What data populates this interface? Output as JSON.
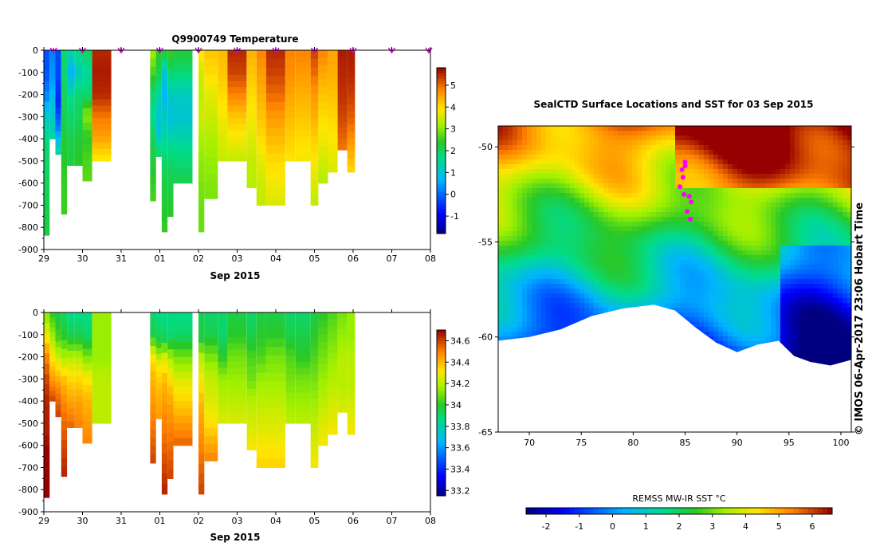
{
  "chart_data": [
    {
      "type": "heatmap",
      "title": "Q9900749  Temperature",
      "xlabel": "Sep 2015",
      "x_ticks": [
        "29",
        "30",
        "31",
        "01",
        "02",
        "03",
        "04",
        "05",
        "06",
        "07",
        "08"
      ],
      "y_ticks": [
        "0",
        "-100",
        "-200",
        "-300",
        "-400",
        "-500",
        "-600",
        "-700",
        "-800",
        "-900"
      ],
      "ylim": [
        -900,
        0
      ],
      "colorbar": {
        "ticks": [
          "-1",
          "0",
          "1",
          "2",
          "3",
          "4",
          "5"
        ],
        "range": [
          -1.8,
          5.8
        ]
      },
      "profiles": [
        {
          "t": 0.0,
          "bottom": -835,
          "values": [
            -0.2,
            -0.2,
            0.3,
            1.2,
            1.8,
            1.9,
            2.0,
            2.1,
            2.2
          ]
        },
        {
          "t": 0.15,
          "bottom": -400,
          "values": [
            0.2,
            0.4,
            1.0,
            1.4
          ]
        },
        {
          "t": 0.3,
          "bottom": -470,
          "values": [
            -0.3,
            -0.3,
            -0.6,
            0.2,
            1.6
          ]
        },
        {
          "t": 0.45,
          "bottom": -740,
          "values": [
            1.8,
            1.9,
            2.0,
            2.1,
            2.3,
            2.4,
            2.5,
            2.5
          ]
        },
        {
          "t": 0.6,
          "bottom": -520,
          "values": [
            1.5,
            0.6,
            1.6,
            1.9,
            2.1,
            2.2
          ]
        },
        {
          "t": 0.8,
          "bottom": -520,
          "values": [
            1.7,
            1.2,
            1.9,
            2.0,
            2.3,
            2.4
          ]
        },
        {
          "t": 1.0,
          "bottom": -590,
          "values": [
            2.0,
            1.5,
            1.8,
            3.0,
            2.4,
            2.6,
            2.7
          ]
        },
        {
          "t": 1.25,
          "bottom": -500,
          "values": [
            5.5,
            5.6,
            5.5,
            4.9,
            4.5,
            3.8
          ]
        },
        {
          "t": 2.75,
          "bottom": -680,
          "values": [
            3.2,
            2.6,
            1.9,
            1.6,
            2.0,
            2.2,
            2.4,
            2.6
          ]
        },
        {
          "t": 2.9,
          "bottom": -480,
          "values": [
            2.5,
            2.0,
            1.2,
            0.9,
            2.0
          ]
        },
        {
          "t": 3.05,
          "bottom": -820,
          "values": [
            2.4,
            1.0,
            0.7,
            1.2,
            1.5,
            1.9,
            2.2,
            2.3,
            2.5
          ]
        },
        {
          "t": 3.2,
          "bottom": -750,
          "values": [
            2.6,
            1.8,
            1.1,
            0.9,
            1.6,
            2.0,
            2.2,
            2.4
          ]
        },
        {
          "t": 3.35,
          "bottom": -600,
          "values": [
            2.3,
            1.8,
            1.2,
            1.0,
            1.4,
            1.8,
            2.1
          ]
        },
        {
          "t": 4.0,
          "bottom": -820,
          "values": [
            4.0,
            3.5,
            3.4,
            3.5,
            3.2,
            3.0,
            2.9,
            2.8,
            2.8
          ]
        },
        {
          "t": 4.15,
          "bottom": -670,
          "values": [
            4.2,
            4.0,
            3.7,
            3.5,
            3.3,
            3.1,
            3.0,
            2.9
          ]
        },
        {
          "t": 4.5,
          "bottom": -500,
          "values": [
            4.3,
            4.2,
            4.0,
            3.8,
            3.6,
            3.4
          ]
        },
        {
          "t": 4.75,
          "bottom": -500,
          "values": [
            5.5,
            5.3,
            4.8,
            4.2,
            3.8,
            3.4
          ]
        },
        {
          "t": 5.25,
          "bottom": -620,
          "values": [
            4.4,
            4.2,
            4.0,
            3.8,
            3.6,
            3.4,
            3.3
          ]
        },
        {
          "t": 5.5,
          "bottom": -700,
          "values": [
            4.8,
            4.6,
            4.4,
            4.2,
            4.0,
            3.7,
            3.5,
            3.4
          ]
        },
        {
          "t": 5.75,
          "bottom": -700,
          "values": [
            5.5,
            5.3,
            5.0,
            4.6,
            4.3,
            4.0,
            3.8,
            3.6
          ]
        },
        {
          "t": 6.25,
          "bottom": -500,
          "values": [
            4.8,
            4.7,
            4.5,
            4.3,
            4.1,
            3.9
          ]
        },
        {
          "t": 6.5,
          "bottom": -500,
          "values": [
            4.8,
            4.6,
            4.4,
            4.2,
            4.0,
            3.8
          ]
        },
        {
          "t": 6.9,
          "bottom": -700,
          "values": [
            5.3,
            5.0,
            4.6,
            4.4,
            4.1,
            3.9,
            3.6,
            3.4
          ]
        },
        {
          "t": 7.1,
          "bottom": -600,
          "values": [
            4.8,
            4.5,
            4.2,
            4.0,
            3.8,
            3.5,
            3.3
          ]
        },
        {
          "t": 7.35,
          "bottom": -550,
          "values": [
            4.5,
            4.4,
            4.2,
            4.0,
            3.8,
            3.6
          ]
        },
        {
          "t": 7.6,
          "bottom": -450,
          "values": [
            5.6,
            5.5,
            5.4,
            5.2,
            4.9
          ]
        },
        {
          "t": 7.85,
          "bottom": -550,
          "values": [
            5.6,
            5.5,
            5.3,
            5.0,
            4.5,
            4.0
          ]
        }
      ],
      "surface_markers": [
        0.25,
        1.0,
        2.0,
        3.0,
        4.0,
        5.0,
        6.0,
        7.0,
        8.0,
        9.0,
        10.0
      ]
    },
    {
      "type": "heatmap",
      "xlabel": "Sep 2015",
      "x_ticks": [
        "29",
        "30",
        "31",
        "01",
        "02",
        "03",
        "04",
        "05",
        "06",
        "07",
        "08"
      ],
      "y_ticks": [
        "0",
        "-100",
        "-200",
        "-300",
        "-400",
        "-500",
        "-600",
        "-700",
        "-800",
        "-900"
      ],
      "ylim": [
        -900,
        0
      ],
      "colorbar": {
        "ticks": [
          "33.2",
          "33.4",
          "33.6",
          "33.8",
          "34",
          "34.2",
          "34.4",
          "34.6"
        ],
        "range": [
          33.15,
          34.7
        ]
      },
      "profiles": [
        {
          "t": 0.0,
          "bottom": -835,
          "values": [
            34.1,
            34.3,
            34.5,
            34.6,
            34.65,
            34.65,
            34.7,
            34.7,
            34.7
          ]
        },
        {
          "t": 0.15,
          "bottom": -400,
          "values": [
            34.0,
            34.2,
            34.4,
            34.6
          ]
        },
        {
          "t": 0.3,
          "bottom": -470,
          "values": [
            33.95,
            34.05,
            34.3,
            34.5,
            34.6
          ]
        },
        {
          "t": 0.45,
          "bottom": -740,
          "values": [
            33.9,
            34.0,
            34.2,
            34.4,
            34.5,
            34.55,
            34.6,
            34.65
          ]
        },
        {
          "t": 0.6,
          "bottom": -520,
          "values": [
            33.85,
            33.95,
            34.2,
            34.35,
            34.45,
            34.55
          ]
        },
        {
          "t": 0.8,
          "bottom": -520,
          "values": [
            33.85,
            33.95,
            34.2,
            34.35,
            34.45,
            34.5
          ]
        },
        {
          "t": 1.0,
          "bottom": -590,
          "values": [
            33.85,
            33.9,
            34.1,
            34.3,
            34.4,
            34.45,
            34.5
          ]
        },
        {
          "t": 1.25,
          "bottom": -500,
          "values": [
            34.15,
            34.15,
            34.15,
            34.2,
            34.2,
            34.2
          ]
        },
        {
          "t": 2.75,
          "bottom": -680,
          "values": [
            33.9,
            33.95,
            34.3,
            34.4,
            34.45,
            34.5,
            34.55,
            34.6
          ]
        },
        {
          "t": 2.9,
          "bottom": -480,
          "values": [
            33.85,
            33.95,
            34.3,
            34.4,
            34.45
          ]
        },
        {
          "t": 3.05,
          "bottom": -820,
          "values": [
            33.85,
            33.9,
            34.25,
            34.4,
            34.45,
            34.5,
            34.55,
            34.6,
            34.65
          ]
        },
        {
          "t": 3.2,
          "bottom": -750,
          "values": [
            33.85,
            33.9,
            34.2,
            34.35,
            34.45,
            34.5,
            34.55,
            34.6
          ]
        },
        {
          "t": 3.35,
          "bottom": -600,
          "values": [
            33.85,
            33.9,
            34.1,
            34.25,
            34.35,
            34.45,
            34.55
          ]
        },
        {
          "t": 4.0,
          "bottom": -820,
          "values": [
            33.95,
            33.95,
            34.2,
            34.3,
            34.4,
            34.45,
            34.5,
            34.55,
            34.6
          ]
        },
        {
          "t": 4.15,
          "bottom": -670,
          "values": [
            33.9,
            33.95,
            34.1,
            34.2,
            34.25,
            34.3,
            34.4,
            34.5
          ]
        },
        {
          "t": 4.5,
          "bottom": -500,
          "values": [
            33.9,
            33.9,
            34.0,
            34.15,
            34.2,
            34.25
          ]
        },
        {
          "t": 4.75,
          "bottom": -500,
          "values": [
            33.95,
            34.0,
            34.1,
            34.15,
            34.2,
            34.25
          ]
        },
        {
          "t": 5.25,
          "bottom": -620,
          "values": [
            33.9,
            33.95,
            34.05,
            34.1,
            34.2,
            34.25,
            34.3
          ]
        },
        {
          "t": 5.5,
          "bottom": -700,
          "values": [
            33.95,
            34.0,
            34.05,
            34.15,
            34.2,
            34.25,
            34.3,
            34.35
          ]
        },
        {
          "t": 5.75,
          "bottom": -700,
          "values": [
            33.95,
            34.0,
            34.1,
            34.15,
            34.2,
            34.25,
            34.3,
            34.35
          ]
        },
        {
          "t": 6.25,
          "bottom": -500,
          "values": [
            33.9,
            33.95,
            34.05,
            34.1,
            34.15,
            34.2
          ]
        },
        {
          "t": 6.5,
          "bottom": -500,
          "values": [
            33.9,
            33.95,
            34.0,
            34.1,
            34.15,
            34.2
          ]
        },
        {
          "t": 6.9,
          "bottom": -700,
          "values": [
            33.95,
            34.0,
            34.05,
            34.1,
            34.15,
            34.2,
            34.25,
            34.3
          ]
        },
        {
          "t": 7.1,
          "bottom": -600,
          "values": [
            34.0,
            34.05,
            34.1,
            34.15,
            34.2,
            34.25,
            34.3
          ]
        },
        {
          "t": 7.35,
          "bottom": -550,
          "values": [
            34.05,
            34.1,
            34.15,
            34.2,
            34.25,
            34.3
          ]
        },
        {
          "t": 7.6,
          "bottom": -450,
          "values": [
            34.1,
            34.15,
            34.2,
            34.2,
            34.25
          ]
        },
        {
          "t": 7.85,
          "bottom": -550,
          "values": [
            34.15,
            34.15,
            34.2,
            34.2,
            34.25,
            34.3
          ]
        }
      ]
    },
    {
      "type": "heatmap",
      "title": "SealCTD Surface Locations and SST for 03 Sep 2015",
      "x_ticks": [
        "70",
        "75",
        "80",
        "85",
        "90",
        "95",
        "100"
      ],
      "y_ticks": [
        "-50",
        "-55",
        "-60",
        "-65"
      ],
      "xlim": [
        67,
        101
      ],
      "ylim": [
        -65,
        -48.9
      ],
      "colorbar": {
        "label": "REMSS MW-IR SST °C",
        "ticks": [
          "-2",
          "-1",
          "0",
          "1",
          "2",
          "3",
          "4",
          "5",
          "6"
        ],
        "range": [
          -2.6,
          6.6
        ]
      },
      "seal_track": [
        [
          85.0,
          -50.8
        ],
        [
          84.7,
          -51.2
        ],
        [
          84.8,
          -51.6
        ],
        [
          84.5,
          -52.1
        ],
        [
          84.9,
          -52.5
        ],
        [
          85.4,
          -52.6
        ],
        [
          85.6,
          -52.9
        ],
        [
          85.2,
          -53.4
        ],
        [
          85.5,
          -53.8
        ],
        [
          85.0,
          -51.0
        ]
      ],
      "credit": "© IMOS 06-Apr-2017 23:06 Hobart Time"
    }
  ]
}
